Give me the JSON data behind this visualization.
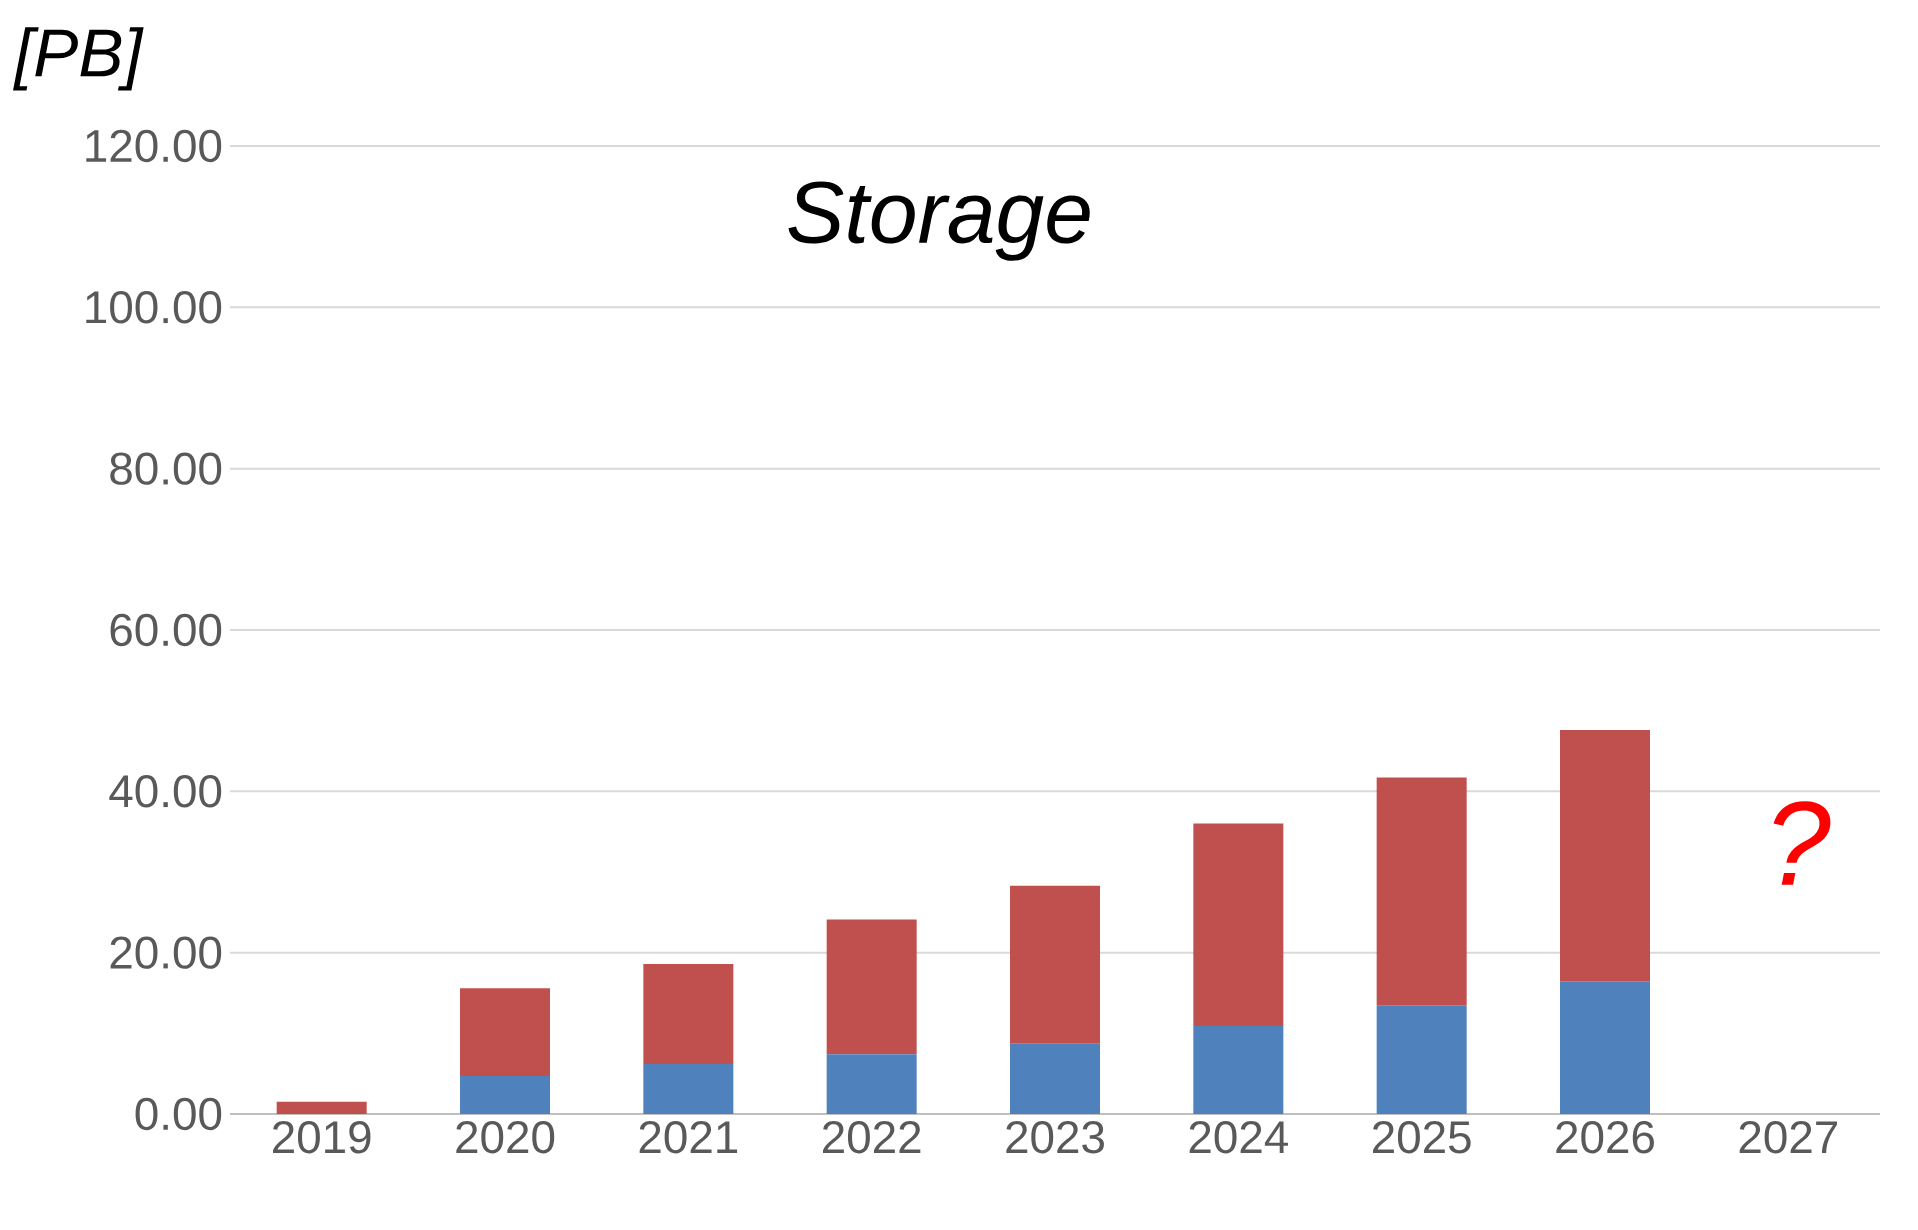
{
  "chart_data": {
    "type": "bar",
    "stacked": true,
    "title": "Storage",
    "ylabel": "[PB]",
    "categories": [
      "2019",
      "2020",
      "2021",
      "2022",
      "2023",
      "2024",
      "2025",
      "2026",
      "2027"
    ],
    "series": [
      {
        "color": "#4f81bd",
        "values": [
          0,
          4.7,
          6.2,
          7.4,
          8.7,
          10.9,
          13.4,
          16.4,
          null
        ]
      },
      {
        "color": "#c0504d",
        "values": [
          1.5,
          10.9,
          12.4,
          16.7,
          19.6,
          25.1,
          28.3,
          31.2,
          null
        ]
      }
    ],
    "ylim": [
      0,
      120
    ],
    "yticks": [
      {
        "value": 0,
        "label": "0.00"
      },
      {
        "value": 20,
        "label": "20.00"
      },
      {
        "value": 40,
        "label": "40.00"
      },
      {
        "value": 60,
        "label": "60.00"
      },
      {
        "value": 80,
        "label": "80.00"
      },
      {
        "value": 100,
        "label": "100.00"
      },
      {
        "value": 120,
        "label": "120.00"
      }
    ],
    "grid": "y",
    "annotations": [
      "?"
    ]
  }
}
